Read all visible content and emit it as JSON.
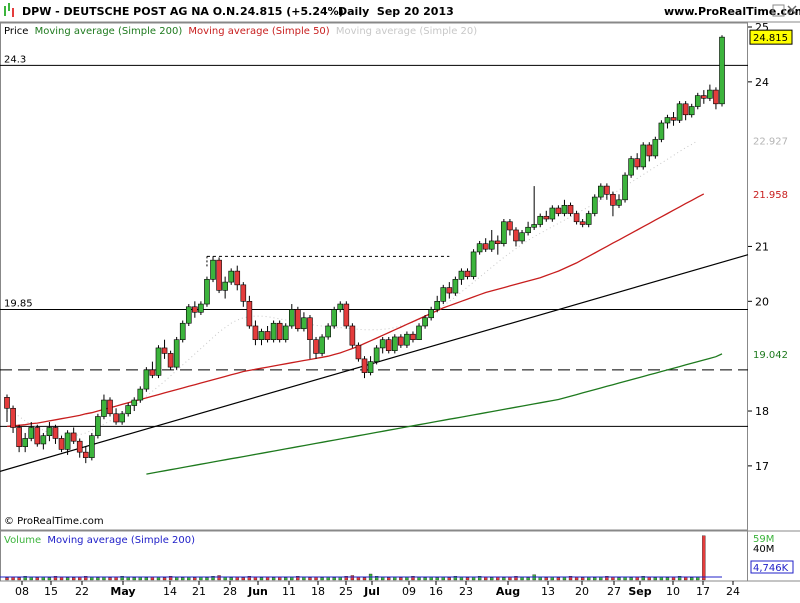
{
  "header": {
    "title": "DPW - DEUTSCHE POST AG NA O.N.",
    "quote": "24.815 (+5.24%)",
    "period": "Daily  Sep 20 2013",
    "site": "www.ProRealTime.com",
    "copyright": "© ProRealTime.com"
  },
  "legend": {
    "price_label": "Price",
    "ma200_label": "Moving average (Simple 200)",
    "ma50_label": "Moving average (Simple 50)",
    "ma20_label": "Moving average (Simple 20)",
    "volume_label": "Volume",
    "vol_ma_label": "Moving average (Simple 200)"
  },
  "colors": {
    "up": "#3cb43c",
    "down": "#e43c3c",
    "ma200": "#1e7a1e",
    "ma50": "#c81e1e",
    "ma20": "#c8c8c8",
    "price_tag": "#ffff00",
    "ma200_tag": "#1e7a1e",
    "ma50_tag": "#c81e1e",
    "ma20_tag": "#b4b4b4",
    "vol_ma": "#2020c8"
  },
  "chart_data": {
    "type": "candlestick",
    "title": "DPW - DEUTSCHE POST AG NA O.N.",
    "y_ticks": [
      "25",
      "24",
      "21",
      "20",
      "18",
      "17"
    ],
    "ylim": [
      16.9,
      25.2
    ],
    "x_ticks": [
      "08",
      "15",
      "22",
      "May",
      "14",
      "21",
      "28",
      "Jun",
      "11",
      "18",
      "25",
      "Jul",
      "09",
      "16",
      "23",
      "Aug",
      "13",
      "20",
      "27",
      "Sep",
      "10",
      "17",
      "24"
    ],
    "horizontal_levels": [
      {
        "label": "24.3",
        "value": 24.3,
        "style": "solid"
      },
      {
        "label": "19.85",
        "value": 19.85,
        "style": "solid"
      },
      {
        "label": "",
        "value": 18.75,
        "style": "dashed"
      },
      {
        "label": "",
        "value": 17.72,
        "style": "solid"
      }
    ],
    "price_tags": [
      {
        "label": "24.815",
        "value": 24.815,
        "series": "price"
      },
      {
        "label": "22.927",
        "value": 22.927,
        "series": "ma20"
      },
      {
        "label": "21.958",
        "value": 21.958,
        "series": "ma50"
      },
      {
        "label": "19.042",
        "value": 19.042,
        "series": "ma200"
      }
    ],
    "candles": [
      [
        18.25,
        18.05,
        18.3,
        17.8
      ],
      [
        18.05,
        17.7,
        18.1,
        17.6
      ],
      [
        17.7,
        17.35,
        17.75,
        17.25
      ],
      [
        17.35,
        17.5,
        17.6,
        17.25
      ],
      [
        17.5,
        17.7,
        17.8,
        17.45
      ],
      [
        17.7,
        17.4,
        17.75,
        17.35
      ],
      [
        17.4,
        17.55,
        17.6,
        17.3
      ],
      [
        17.55,
        17.7,
        17.8,
        17.45
      ],
      [
        17.7,
        17.5,
        17.75,
        17.4
      ],
      [
        17.5,
        17.3,
        17.55,
        17.25
      ],
      [
        17.3,
        17.6,
        17.65,
        17.2
      ],
      [
        17.6,
        17.45,
        17.7,
        17.4
      ],
      [
        17.45,
        17.25,
        17.5,
        17.15
      ],
      [
        17.25,
        17.15,
        17.35,
        17.05
      ],
      [
        17.15,
        17.55,
        17.6,
        17.1
      ],
      [
        17.55,
        17.9,
        17.95,
        17.5
      ],
      [
        17.9,
        18.2,
        18.3,
        17.85
      ],
      [
        18.2,
        17.95,
        18.25,
        17.9
      ],
      [
        17.95,
        17.8,
        18.05,
        17.75
      ],
      [
        17.8,
        17.95,
        18.0,
        17.75
      ],
      [
        17.95,
        18.1,
        18.15,
        17.9
      ],
      [
        18.1,
        18.2,
        18.25,
        18.0
      ],
      [
        18.2,
        18.4,
        18.45,
        18.15
      ],
      [
        18.4,
        18.75,
        18.8,
        18.35
      ],
      [
        18.75,
        18.65,
        18.9,
        18.6
      ],
      [
        18.65,
        19.15,
        19.2,
        18.6
      ],
      [
        19.15,
        19.05,
        19.3,
        18.95
      ],
      [
        19.05,
        18.8,
        19.1,
        18.75
      ],
      [
        18.8,
        19.3,
        19.35,
        18.75
      ],
      [
        19.3,
        19.6,
        19.65,
        19.25
      ],
      [
        19.6,
        19.9,
        19.95,
        19.55
      ],
      [
        19.9,
        19.8,
        20.0,
        19.7
      ],
      [
        19.8,
        19.95,
        20.0,
        19.75
      ],
      [
        19.95,
        20.4,
        20.45,
        19.9
      ],
      [
        20.4,
        20.75,
        20.82,
        20.35
      ],
      [
        20.75,
        20.2,
        20.8,
        20.15
      ],
      [
        20.2,
        20.35,
        20.45,
        20.05
      ],
      [
        20.35,
        20.55,
        20.6,
        20.3
      ],
      [
        20.55,
        20.3,
        20.65,
        20.2
      ],
      [
        20.3,
        20.0,
        20.35,
        19.9
      ],
      [
        20.0,
        19.55,
        20.1,
        19.5
      ],
      [
        19.55,
        19.3,
        19.65,
        19.2
      ],
      [
        19.3,
        19.45,
        19.5,
        19.2
      ],
      [
        19.45,
        19.3,
        19.55,
        19.25
      ],
      [
        19.3,
        19.6,
        19.65,
        19.25
      ],
      [
        19.6,
        19.3,
        19.65,
        19.25
      ],
      [
        19.3,
        19.55,
        19.6,
        19.25
      ],
      [
        19.55,
        19.85,
        19.95,
        19.5
      ],
      [
        19.85,
        19.5,
        19.9,
        19.45
      ],
      [
        19.5,
        19.7,
        19.8,
        19.45
      ],
      [
        19.7,
        19.3,
        19.75,
        18.95
      ],
      [
        19.3,
        19.05,
        19.35,
        18.95
      ],
      [
        19.05,
        19.35,
        19.4,
        19.0
      ],
      [
        19.35,
        19.55,
        19.6,
        19.3
      ],
      [
        19.55,
        19.85,
        19.9,
        19.5
      ],
      [
        19.85,
        19.95,
        20.0,
        19.8
      ],
      [
        19.95,
        19.55,
        20.0,
        19.5
      ],
      [
        19.55,
        19.2,
        19.6,
        19.15
      ],
      [
        19.2,
        18.95,
        19.25,
        18.9
      ],
      [
        18.95,
        18.7,
        19.0,
        18.6
      ],
      [
        18.7,
        18.9,
        19.0,
        18.65
      ],
      [
        18.9,
        19.15,
        19.2,
        18.85
      ],
      [
        19.15,
        19.3,
        19.35,
        19.05
      ],
      [
        19.3,
        19.1,
        19.35,
        19.05
      ],
      [
        19.1,
        19.35,
        19.4,
        19.05
      ],
      [
        19.35,
        19.2,
        19.4,
        19.15
      ],
      [
        19.2,
        19.4,
        19.45,
        19.15
      ],
      [
        19.4,
        19.3,
        19.45,
        19.25
      ],
      [
        19.3,
        19.55,
        19.6,
        19.3
      ],
      [
        19.55,
        19.7,
        19.75,
        19.5
      ],
      [
        19.7,
        19.85,
        19.9,
        19.65
      ],
      [
        19.85,
        20.0,
        20.1,
        19.8
      ],
      [
        20.0,
        20.25,
        20.3,
        19.95
      ],
      [
        20.25,
        20.15,
        20.35,
        20.05
      ],
      [
        20.15,
        20.4,
        20.45,
        20.1
      ],
      [
        20.4,
        20.55,
        20.6,
        20.3
      ],
      [
        20.55,
        20.45,
        20.6,
        20.4
      ],
      [
        20.45,
        20.9,
        20.95,
        20.4
      ],
      [
        20.9,
        21.05,
        21.1,
        20.85
      ],
      [
        21.05,
        20.95,
        21.15,
        20.9
      ],
      [
        20.95,
        21.1,
        21.3,
        20.9
      ],
      [
        21.1,
        21.05,
        21.2,
        20.85
      ],
      [
        21.05,
        21.45,
        21.5,
        21.0
      ],
      [
        21.45,
        21.3,
        21.5,
        21.2
      ],
      [
        21.3,
        21.1,
        21.35,
        21.0
      ],
      [
        21.1,
        21.25,
        21.3,
        21.05
      ],
      [
        21.25,
        21.35,
        21.45,
        21.2
      ],
      [
        21.35,
        21.4,
        22.1,
        21.3
      ],
      [
        21.4,
        21.55,
        21.6,
        21.35
      ],
      [
        21.55,
        21.5,
        21.65,
        21.45
      ],
      [
        21.5,
        21.7,
        21.75,
        21.45
      ],
      [
        21.7,
        21.6,
        21.75,
        21.55
      ],
      [
        21.6,
        21.75,
        21.85,
        21.55
      ],
      [
        21.75,
        21.6,
        21.8,
        21.55
      ],
      [
        21.6,
        21.45,
        21.65,
        21.4
      ],
      [
        21.45,
        21.4,
        21.5,
        21.35
      ],
      [
        21.4,
        21.6,
        21.65,
        21.35
      ],
      [
        21.6,
        21.9,
        21.95,
        21.55
      ],
      [
        21.9,
        22.1,
        22.15,
        21.85
      ],
      [
        22.1,
        21.95,
        22.15,
        21.85
      ],
      [
        21.95,
        21.75,
        22.0,
        21.55
      ],
      [
        21.75,
        21.85,
        21.95,
        21.7
      ],
      [
        21.85,
        22.3,
        22.35,
        21.8
      ],
      [
        22.3,
        22.6,
        22.65,
        22.25
      ],
      [
        22.6,
        22.45,
        22.7,
        22.4
      ],
      [
        22.45,
        22.85,
        22.9,
        22.4
      ],
      [
        22.85,
        22.65,
        22.9,
        22.55
      ],
      [
        22.65,
        22.95,
        23.0,
        22.6
      ],
      [
        22.95,
        23.25,
        23.3,
        22.9
      ],
      [
        23.25,
        23.35,
        23.4,
        23.15
      ],
      [
        23.35,
        23.3,
        23.45,
        23.2
      ],
      [
        23.3,
        23.6,
        23.65,
        23.25
      ],
      [
        23.6,
        23.4,
        23.65,
        23.3
      ],
      [
        23.4,
        23.55,
        23.6,
        23.35
      ],
      [
        23.55,
        23.75,
        23.8,
        23.5
      ],
      [
        23.75,
        23.7,
        23.85,
        23.6
      ],
      [
        23.7,
        23.85,
        23.95,
        23.65
      ],
      [
        23.85,
        23.6,
        23.9,
        23.5
      ],
      [
        23.6,
        24.815,
        24.85,
        23.55
      ]
    ],
    "ma50": [
      17.72,
      17.73,
      17.74,
      17.75,
      17.77,
      17.78,
      17.8,
      17.82,
      17.84,
      17.86,
      17.88,
      17.9,
      17.92,
      17.95,
      17.97,
      18.0,
      18.03,
      18.06,
      18.09,
      18.12,
      18.15,
      18.18,
      18.21,
      18.24,
      18.27,
      18.3,
      18.33,
      18.36,
      18.39,
      18.42,
      18.45,
      18.48,
      18.51,
      18.54,
      18.57,
      18.6,
      18.63,
      18.66,
      18.69,
      18.72,
      18.74,
      18.76,
      18.78,
      18.8,
      18.82,
      18.84,
      18.86,
      18.88,
      18.9,
      18.92,
      18.94,
      18.96,
      18.98,
      19.0,
      19.03,
      19.06,
      19.1,
      19.14,
      19.18,
      19.23,
      19.28,
      19.33,
      19.38,
      19.43,
      19.48,
      19.53,
      19.58,
      19.63,
      19.68,
      19.73,
      19.78,
      19.83,
      19.88,
      19.92,
      19.96,
      20.0,
      20.04,
      20.08,
      20.12,
      20.16,
      20.19,
      20.22,
      20.25,
      20.28,
      20.31,
      20.34,
      20.37,
      20.4,
      20.43,
      20.47,
      20.51,
      20.55,
      20.6,
      20.65,
      20.7,
      20.76,
      20.82,
      20.88,
      20.94,
      21.0,
      21.06,
      21.12,
      21.18,
      21.24,
      21.3,
      21.36,
      21.42,
      21.48,
      21.54,
      21.6,
      21.66,
      21.72,
      21.78,
      21.84,
      21.9,
      21.958
    ],
    "ma200": [
      16.85,
      16.87,
      16.89,
      16.91,
      16.93,
      16.95,
      16.97,
      16.99,
      17.01,
      17.03,
      17.05,
      17.07,
      17.09,
      17.11,
      17.13,
      17.15,
      17.17,
      17.19,
      17.21,
      17.23,
      17.25,
      17.27,
      17.29,
      17.31,
      17.33,
      17.35,
      17.37,
      17.39,
      17.41,
      17.43,
      17.45,
      17.47,
      17.49,
      17.51,
      17.53,
      17.55,
      17.57,
      17.59,
      17.61,
      17.63,
      17.65,
      17.67,
      17.69,
      17.71,
      17.73,
      17.75,
      17.77,
      17.79,
      17.81,
      17.83,
      17.85,
      17.87,
      17.89,
      17.91,
      17.93,
      17.95,
      17.97,
      17.99,
      18.01,
      18.03,
      18.05,
      18.07,
      18.09,
      18.11,
      18.13,
      18.15,
      18.17,
      18.19,
      18.21,
      18.24,
      18.27,
      18.3,
      18.33,
      18.36,
      18.39,
      18.42,
      18.45,
      18.48,
      18.51,
      18.54,
      18.57,
      18.6,
      18.63,
      18.66,
      18.69,
      18.72,
      18.75,
      18.78,
      18.81,
      18.84,
      18.87,
      18.9,
      18.93,
      18.96,
      18.99,
      19.042
    ],
    "ma20": [
      18.0,
      17.98,
      17.9,
      17.82,
      17.75,
      17.7,
      17.65,
      17.6,
      17.58,
      17.56,
      17.55,
      17.55,
      17.57,
      17.6,
      17.65,
      17.7,
      17.76,
      17.82,
      17.88,
      17.95,
      18.02,
      18.1,
      18.18,
      18.27,
      18.36,
      18.45,
      18.54,
      18.64,
      18.74,
      18.84,
      18.94,
      19.04,
      19.14,
      19.24,
      19.34,
      19.44,
      19.52,
      19.6,
      19.66,
      19.7,
      19.72,
      19.73,
      19.73,
      19.72,
      19.7,
      19.68,
      19.66,
      19.64,
      19.62,
      19.6,
      19.58,
      19.56,
      19.55,
      19.54,
      19.53,
      19.52,
      19.51,
      19.5,
      19.49,
      19.48,
      19.48,
      19.48,
      19.49,
      19.5,
      19.52,
      19.55,
      19.58,
      19.62,
      19.67,
      19.72,
      19.78,
      19.85,
      19.92,
      20.0,
      20.08,
      20.17,
      20.26,
      20.35,
      20.44,
      20.53,
      20.62,
      20.71,
      20.8,
      20.88,
      20.96,
      21.04,
      21.11,
      21.18,
      21.24,
      21.3,
      21.36,
      21.42,
      21.48,
      21.54,
      21.6,
      21.66,
      21.72,
      21.78,
      21.84,
      21.9,
      21.96,
      22.03,
      22.1,
      22.17,
      22.24,
      22.31,
      22.38,
      22.45,
      22.52,
      22.59,
      22.66,
      22.73,
      22.8,
      22.86,
      22.927
    ],
    "trendline": {
      "start_value": 16.9,
      "end_value": 20.85
    },
    "resistance_dotted": {
      "value": 20.82
    },
    "volume": {
      "tags": [
        "59M",
        "40M",
        "4,746K"
      ],
      "values": [
        3,
        4,
        3,
        5,
        4,
        3,
        4,
        3,
        5,
        4,
        3,
        3,
        4,
        5,
        4,
        3,
        4,
        3,
        4,
        5,
        4,
        3,
        4,
        3,
        4,
        4,
        3,
        5,
        4,
        3,
        4,
        3,
        4,
        3,
        5,
        6,
        4,
        3,
        4,
        3,
        5,
        4,
        3,
        4,
        3,
        4,
        3,
        4,
        5,
        4,
        3,
        4,
        3,
        4,
        3,
        4,
        5,
        6,
        4,
        3,
        8,
        5,
        4,
        3,
        4,
        3,
        4,
        5,
        4,
        3,
        4,
        3,
        4,
        3,
        5,
        4,
        3,
        4,
        5,
        4,
        3,
        4,
        3,
        4,
        5,
        4,
        3,
        7,
        4,
        3,
        4,
        3,
        4,
        5,
        4,
        3,
        4,
        3,
        4,
        5,
        4,
        3,
        4,
        3,
        4,
        5,
        4,
        3,
        4,
        3,
        4,
        5,
        4,
        3,
        4,
        59
      ]
    }
  }
}
